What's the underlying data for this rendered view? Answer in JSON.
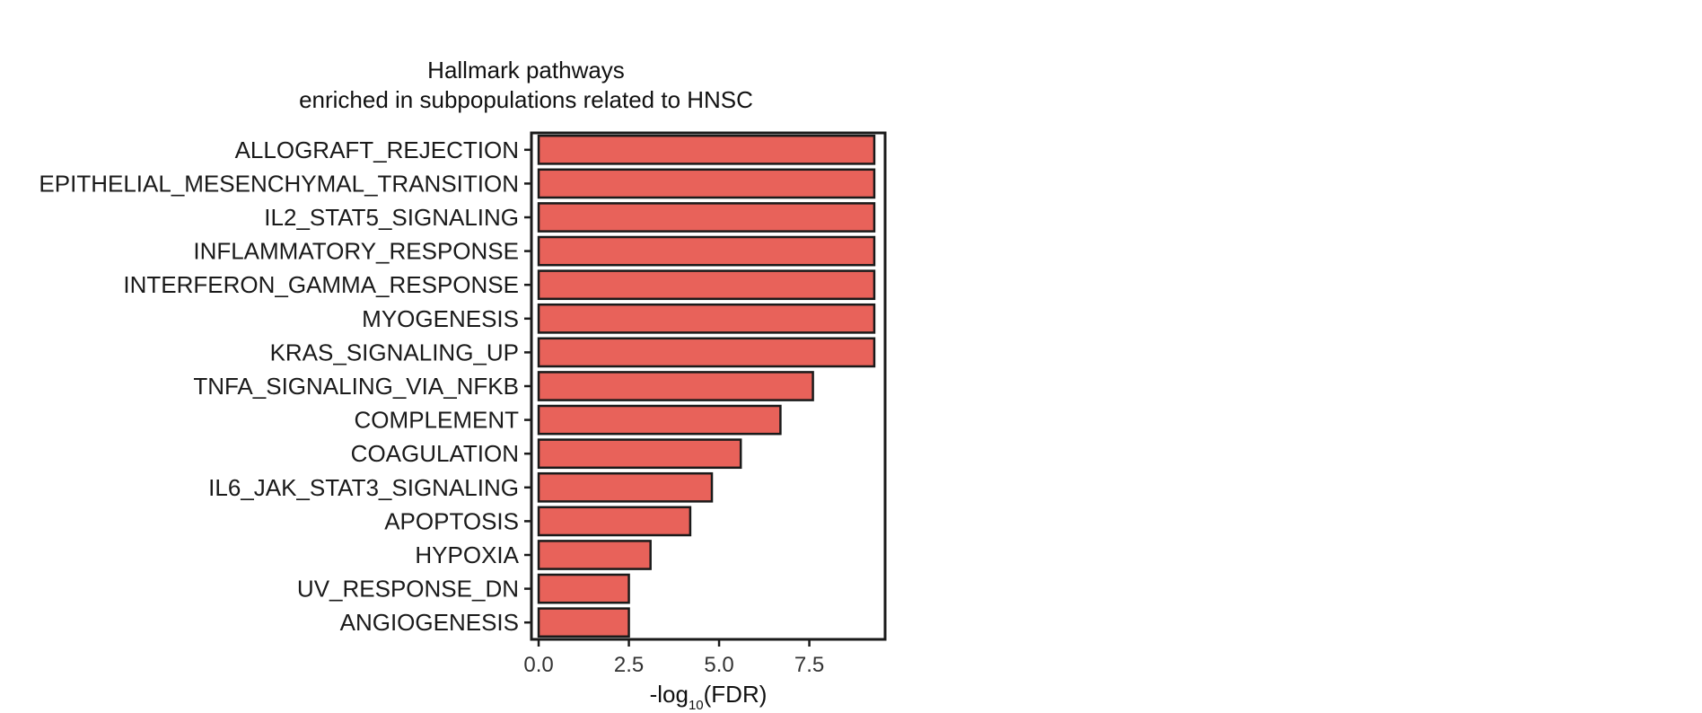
{
  "chart_data": {
    "type": "bar",
    "orientation": "horizontal",
    "title": "Hallmark pathways",
    "subtitle": "enriched in subpopulations related to HNSC",
    "categories": [
      "ALLOGRAFT_REJECTION",
      "EPITHELIAL_MESENCHYMAL_TRANSITION",
      "IL2_STAT5_SIGNALING",
      "INFLAMMATORY_RESPONSE",
      "INTERFERON_GAMMA_RESPONSE",
      "MYOGENESIS",
      "KRAS_SIGNALING_UP",
      "TNFA_SIGNALING_VIA_NFKB",
      "COMPLEMENT",
      "COAGULATION",
      "IL6_JAK_STAT3_SIGNALING",
      "APOPTOSIS",
      "HYPOXIA",
      "UV_RESPONSE_DN",
      "ANGIOGENESIS"
    ],
    "values": [
      9.3,
      9.3,
      9.3,
      9.3,
      9.3,
      9.3,
      9.3,
      7.6,
      6.7,
      5.6,
      4.8,
      4.2,
      3.1,
      2.5,
      2.5
    ],
    "xlabel_prefix": "-log",
    "xlabel_subscript": "10",
    "xlabel_suffix": "(FDR)",
    "ylabel": "",
    "xlim": [
      -0.2,
      9.6
    ],
    "xticks": [
      0,
      2.5,
      5,
      7.5
    ],
    "xtick_labels": [
      "0.0",
      "2.5",
      "5.0",
      "7.5"
    ],
    "grid": false,
    "legend": "none",
    "bar_color": "#e8625a",
    "bar_edge_color": "#1a1a1a",
    "axis_color": "#1a1a1a"
  }
}
